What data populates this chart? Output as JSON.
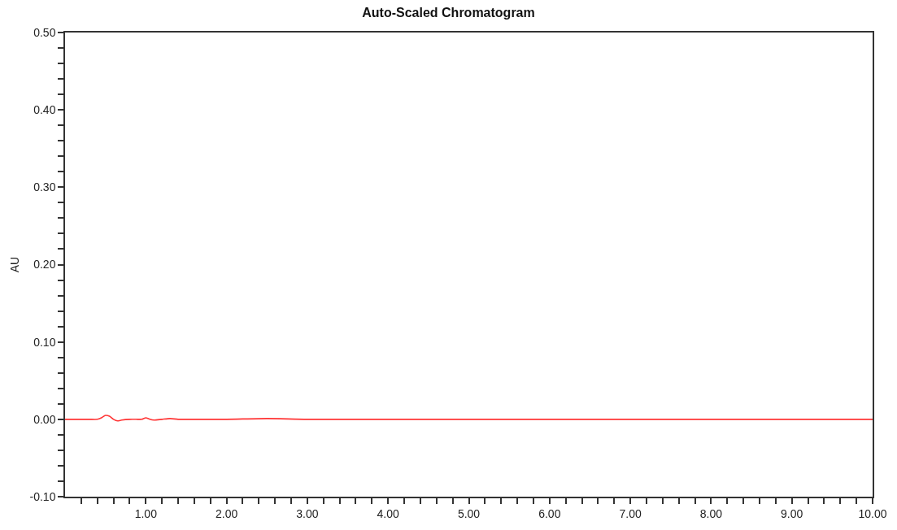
{
  "chart_data": {
    "type": "line",
    "title": "Auto-Scaled Chromatogram",
    "ylabel": "AU",
    "series": [
      {
        "color": "#ff3333",
        "x": [
          0,
          0.3,
          0.4,
          0.45,
          0.5,
          0.55,
          0.6,
          0.65,
          0.7,
          0.8,
          0.9,
          0.95,
          1.0,
          1.05,
          1.1,
          1.2,
          1.3,
          1.4,
          1.6,
          2.0,
          2.5,
          3.0,
          4.5,
          6.0,
          8.0,
          10.0
        ],
        "values": [
          0,
          0,
          0,
          0.002,
          0.005,
          0.004,
          0.0,
          -0.002,
          -0.001,
          0,
          0,
          0,
          0.002,
          0.0,
          -0.001,
          0,
          0.001,
          0,
          0,
          0,
          0.001,
          0,
          0,
          0,
          0,
          0
        ]
      }
    ],
    "xlim": [
      0,
      10
    ],
    "xticks": [
      {
        "value": 0.2,
        "label": null
      },
      {
        "value": 0.4,
        "label": null
      },
      {
        "value": 0.6,
        "label": null
      },
      {
        "value": 0.8,
        "label": null
      },
      {
        "value": 1,
        "label": "1.00"
      },
      {
        "value": 1.2,
        "label": null
      },
      {
        "value": 1.4,
        "label": null
      },
      {
        "value": 1.6,
        "label": null
      },
      {
        "value": 1.8,
        "label": null
      },
      {
        "value": 2,
        "label": "2.00"
      },
      {
        "value": 2.2,
        "label": null
      },
      {
        "value": 2.4,
        "label": null
      },
      {
        "value": 2.6,
        "label": null
      },
      {
        "value": 2.8,
        "label": null
      },
      {
        "value": 3,
        "label": "3.00"
      },
      {
        "value": 3.2,
        "label": null
      },
      {
        "value": 3.4,
        "label": null
      },
      {
        "value": 3.6,
        "label": null
      },
      {
        "value": 3.8,
        "label": null
      },
      {
        "value": 4,
        "label": "4.00"
      },
      {
        "value": 4.2,
        "label": null
      },
      {
        "value": 4.4,
        "label": null
      },
      {
        "value": 4.6,
        "label": null
      },
      {
        "value": 4.8,
        "label": null
      },
      {
        "value": 5,
        "label": "5.00"
      },
      {
        "value": 5.2,
        "label": null
      },
      {
        "value": 5.4,
        "label": null
      },
      {
        "value": 5.6,
        "label": null
      },
      {
        "value": 5.8,
        "label": null
      },
      {
        "value": 6,
        "label": "6.00"
      },
      {
        "value": 6.2,
        "label": null
      },
      {
        "value": 6.4,
        "label": null
      },
      {
        "value": 6.6,
        "label": null
      },
      {
        "value": 6.8,
        "label": null
      },
      {
        "value": 7,
        "label": "7.00"
      },
      {
        "value": 7.2,
        "label": null
      },
      {
        "value": 7.4,
        "label": null
      },
      {
        "value": 7.6,
        "label": null
      },
      {
        "value": 7.8,
        "label": null
      },
      {
        "value": 8,
        "label": "8.00"
      },
      {
        "value": 8.2,
        "label": null
      },
      {
        "value": 8.4,
        "label": null
      },
      {
        "value": 8.6,
        "label": null
      },
      {
        "value": 8.8,
        "label": null
      },
      {
        "value": 9,
        "label": "9.00"
      },
      {
        "value": 9.2,
        "label": null
      },
      {
        "value": 9.4,
        "label": null
      },
      {
        "value": 9.6,
        "label": null
      },
      {
        "value": 9.8,
        "label": null
      },
      {
        "value": 10,
        "label": "10.00"
      }
    ],
    "ylim": [
      -0.1,
      0.5
    ],
    "yticks": [
      {
        "value": -0.1,
        "label": "-0.10"
      },
      {
        "value": -0.08,
        "label": null
      },
      {
        "value": -0.06,
        "label": null
      },
      {
        "value": -0.04,
        "label": null
      },
      {
        "value": -0.02,
        "label": null
      },
      {
        "value": 0,
        "label": "0.00"
      },
      {
        "value": 0.02,
        "label": null
      },
      {
        "value": 0.04,
        "label": null
      },
      {
        "value": 0.06,
        "label": null
      },
      {
        "value": 0.08,
        "label": null
      },
      {
        "value": 0.1,
        "label": "0.10"
      },
      {
        "value": 0.12,
        "label": null
      },
      {
        "value": 0.14,
        "label": null
      },
      {
        "value": 0.16,
        "label": null
      },
      {
        "value": 0.18,
        "label": null
      },
      {
        "value": 0.2,
        "label": "0.20"
      },
      {
        "value": 0.22,
        "label": null
      },
      {
        "value": 0.24,
        "label": null
      },
      {
        "value": 0.26,
        "label": null
      },
      {
        "value": 0.28,
        "label": null
      },
      {
        "value": 0.3,
        "label": "0.30"
      },
      {
        "value": 0.32,
        "label": null
      },
      {
        "value": 0.34,
        "label": null
      },
      {
        "value": 0.36,
        "label": null
      },
      {
        "value": 0.38,
        "label": null
      },
      {
        "value": 0.4,
        "label": "0.40"
      },
      {
        "value": 0.42,
        "label": null
      },
      {
        "value": 0.44,
        "label": null
      },
      {
        "value": 0.46,
        "label": null
      },
      {
        "value": 0.48,
        "label": null
      },
      {
        "value": 0.5,
        "label": "0.50"
      }
    ],
    "marker": "none",
    "line_style": "solid"
  }
}
